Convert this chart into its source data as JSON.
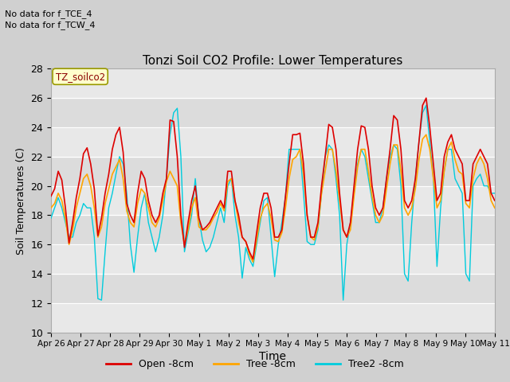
{
  "title": "Tonzi Soil CO2 Profile: Lower Temperatures",
  "xlabel": "Time",
  "ylabel": "Soil Temperatures (C)",
  "ylim": [
    10,
    28
  ],
  "yticks": [
    10,
    12,
    14,
    16,
    18,
    20,
    22,
    24,
    26,
    28
  ],
  "annotation_lines": [
    "No data for f_TCE_4",
    "No data for f_TCW_4"
  ],
  "dataset_label": "TZ_soilco2",
  "legend_entries": [
    "Open -8cm",
    "Tree -8cm",
    "Tree2 -8cm"
  ],
  "line_colors": [
    "#dd0000",
    "#ffa500",
    "#00ccdd"
  ],
  "xtick_labels": [
    "Apr 26",
    "Apr 27",
    "Apr 28",
    "Apr 29",
    "Apr 30",
    "May 1",
    "May 2",
    "May 3",
    "May 4",
    "May 5",
    "May 6",
    "May 7",
    "May 8",
    "May 9",
    "May 10",
    "May 11"
  ],
  "open_8cm": [
    19.3,
    19.8,
    21.0,
    20.4,
    18.5,
    16.1,
    17.5,
    19.2,
    20.5,
    22.2,
    22.6,
    21.5,
    19.8,
    16.6,
    17.8,
    19.5,
    20.8,
    22.5,
    23.5,
    24.0,
    22.3,
    18.8,
    18.0,
    17.5,
    19.5,
    21.0,
    20.5,
    19.0,
    18.0,
    17.5,
    18.0,
    19.5,
    20.5,
    24.5,
    24.4,
    22.0,
    18.0,
    15.8,
    17.5,
    19.0,
    20.0,
    17.8,
    17.0,
    17.2,
    17.5,
    18.0,
    18.5,
    19.0,
    18.5,
    21.0,
    21.0,
    19.0,
    18.0,
    16.5,
    16.2,
    15.5,
    15.0,
    16.8,
    18.5,
    19.5,
    19.5,
    18.5,
    16.5,
    16.5,
    17.0,
    19.3,
    21.5,
    23.5,
    23.5,
    23.6,
    21.5,
    18.0,
    16.5,
    16.5,
    17.5,
    20.0,
    22.0,
    24.2,
    24.0,
    22.5,
    19.5,
    17.0,
    16.5,
    17.5,
    20.0,
    22.5,
    24.1,
    24.0,
    22.5,
    20.0,
    18.5,
    18.0,
    18.5,
    20.5,
    22.5,
    24.8,
    24.5,
    22.5,
    19.0,
    18.5,
    19.0,
    20.5,
    23.0,
    25.5,
    26.0,
    24.0,
    21.5,
    19.0,
    19.5,
    22.0,
    23.0,
    23.5,
    22.5,
    22.0,
    21.5,
    19.0,
    19.0,
    21.5,
    22.0,
    22.5,
    22.0,
    21.5,
    19.5,
    19.0
  ],
  "tree_8cm": [
    18.5,
    18.8,
    19.5,
    19.0,
    17.8,
    16.0,
    17.0,
    18.5,
    19.5,
    20.5,
    20.8,
    20.0,
    18.5,
    16.5,
    17.2,
    18.8,
    19.8,
    20.8,
    21.3,
    21.8,
    20.5,
    18.3,
    17.5,
    17.2,
    18.8,
    19.8,
    19.5,
    18.5,
    17.5,
    17.2,
    17.8,
    19.0,
    20.3,
    21.0,
    20.5,
    20.0,
    17.5,
    16.0,
    17.0,
    18.5,
    19.2,
    17.2,
    17.0,
    17.0,
    17.3,
    17.8,
    18.2,
    18.8,
    18.3,
    20.3,
    20.5,
    19.0,
    17.5,
    16.5,
    16.2,
    15.3,
    14.8,
    16.3,
    17.8,
    18.5,
    18.8,
    17.8,
    16.3,
    16.2,
    16.8,
    18.5,
    20.5,
    21.8,
    22.0,
    22.5,
    20.8,
    18.0,
    16.5,
    16.3,
    17.2,
    19.5,
    21.0,
    22.5,
    22.5,
    21.0,
    19.0,
    17.0,
    16.5,
    17.0,
    19.3,
    21.3,
    22.5,
    22.5,
    21.0,
    19.3,
    18.0,
    17.5,
    18.0,
    19.8,
    21.5,
    22.8,
    22.8,
    21.0,
    18.5,
    18.0,
    18.5,
    19.8,
    21.8,
    23.2,
    23.5,
    22.5,
    20.5,
    18.5,
    19.0,
    21.0,
    22.5,
    23.0,
    21.8,
    21.0,
    20.8,
    18.8,
    18.5,
    20.5,
    21.5,
    22.0,
    21.5,
    20.5,
    19.0,
    18.5
  ],
  "tree2_8cm": [
    17.8,
    18.5,
    19.2,
    18.5,
    17.5,
    16.5,
    16.5,
    17.5,
    18.0,
    18.8,
    18.5,
    18.5,
    16.5,
    12.3,
    12.2,
    15.5,
    18.5,
    19.5,
    20.8,
    22.0,
    21.5,
    19.5,
    16.0,
    14.1,
    16.5,
    18.5,
    19.5,
    17.5,
    16.5,
    15.5,
    16.5,
    18.0,
    20.5,
    23.5,
    25.0,
    25.3,
    22.0,
    15.5,
    16.8,
    18.0,
    20.5,
    17.8,
    16.3,
    15.5,
    15.8,
    16.5,
    17.5,
    18.5,
    17.5,
    20.0,
    20.5,
    18.0,
    16.5,
    13.7,
    15.8,
    15.0,
    14.5,
    16.0,
    17.5,
    19.0,
    19.2,
    16.5,
    13.8,
    16.0,
    17.5,
    19.3,
    22.5,
    22.5,
    22.5,
    22.5,
    19.5,
    16.2,
    16.0,
    16.0,
    17.0,
    19.5,
    22.0,
    22.8,
    22.5,
    20.5,
    18.0,
    12.2,
    16.0,
    17.5,
    19.5,
    21.5,
    22.5,
    22.0,
    20.5,
    19.0,
    17.5,
    17.5,
    18.5,
    20.5,
    22.0,
    22.8,
    22.5,
    20.0,
    14.0,
    13.5,
    17.5,
    20.5,
    23.0,
    25.0,
    25.5,
    23.0,
    20.5,
    14.5,
    18.5,
    21.0,
    22.5,
    22.5,
    20.5,
    20.0,
    19.5,
    14.0,
    13.5,
    20.0,
    20.5,
    20.8,
    20.0,
    20.0,
    19.5,
    19.5
  ]
}
